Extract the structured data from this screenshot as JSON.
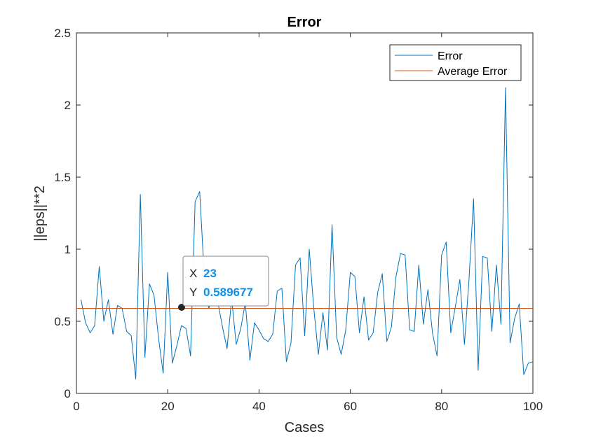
{
  "chart_data": {
    "type": "line",
    "title": "Error",
    "xlabel": "Cases",
    "ylabel": "||eps||**2",
    "xlim": [
      0,
      100
    ],
    "ylim": [
      0,
      2.5
    ],
    "xticks": [
      0,
      20,
      40,
      60,
      80,
      100
    ],
    "xtick_labels": [
      "0",
      "20",
      "40",
      "60",
      "80",
      "100"
    ],
    "yticks": [
      0,
      0.5,
      1,
      1.5,
      2,
      2.5
    ],
    "ytick_labels": [
      "0",
      "0.5",
      "1",
      "1.5",
      "2",
      "2.5"
    ],
    "grid": false,
    "legend_position": "top-right",
    "colors": {
      "error": "#0072bd",
      "average": "#d95319"
    },
    "series": [
      {
        "name": "Error",
        "x": [
          1,
          2,
          3,
          4,
          5,
          6,
          7,
          8,
          9,
          10,
          11,
          12,
          13,
          14,
          15,
          16,
          17,
          18,
          19,
          20,
          21,
          22,
          23,
          24,
          25,
          26,
          27,
          28,
          29,
          30,
          31,
          32,
          33,
          34,
          35,
          36,
          37,
          38,
          39,
          40,
          41,
          42,
          43,
          44,
          45,
          46,
          47,
          48,
          49,
          50,
          51,
          52,
          53,
          54,
          55,
          56,
          57,
          58,
          59,
          60,
          61,
          62,
          63,
          64,
          65,
          66,
          67,
          68,
          69,
          70,
          71,
          72,
          73,
          74,
          75,
          76,
          77,
          78,
          79,
          80,
          81,
          82,
          83,
          84,
          85,
          86,
          87,
          88,
          89,
          90,
          91,
          92,
          93,
          94,
          95,
          96,
          97,
          98,
          99,
          100
        ],
        "y": [
          0.65,
          0.49,
          0.42,
          0.47,
          0.88,
          0.5,
          0.65,
          0.41,
          0.61,
          0.59,
          0.43,
          0.4,
          0.1,
          1.38,
          0.25,
          0.76,
          0.68,
          0.38,
          0.14,
          0.84,
          0.21,
          0.33,
          0.47,
          0.45,
          0.26,
          1.33,
          1.4,
          0.82,
          0.59,
          0.68,
          0.63,
          0.46,
          0.31,
          0.66,
          0.34,
          0.45,
          0.63,
          0.23,
          0.49,
          0.44,
          0.38,
          0.36,
          0.41,
          0.71,
          0.73,
          0.22,
          0.35,
          0.89,
          0.94,
          0.4,
          1.0,
          0.59,
          0.27,
          0.56,
          0.3,
          1.17,
          0.39,
          0.27,
          0.44,
          0.84,
          0.81,
          0.42,
          0.67,
          0.37,
          0.42,
          0.7,
          0.83,
          0.36,
          0.46,
          0.81,
          0.97,
          0.96,
          0.44,
          0.43,
          0.89,
          0.48,
          0.72,
          0.42,
          0.26,
          0.96,
          1.05,
          0.42,
          0.6,
          0.79,
          0.34,
          0.79,
          1.35,
          0.16,
          0.95,
          0.94,
          0.43,
          0.89,
          0.48,
          2.12,
          0.35,
          0.52,
          0.62,
          0.13,
          0.21,
          0.22
        ]
      },
      {
        "name": "Average Error",
        "x": [
          0,
          100
        ],
        "y": [
          0.5897,
          0.5897
        ]
      }
    ],
    "datatip": {
      "x_key": "X",
      "x_value": "23",
      "y_key": "Y",
      "y_value": "0.589677"
    }
  }
}
